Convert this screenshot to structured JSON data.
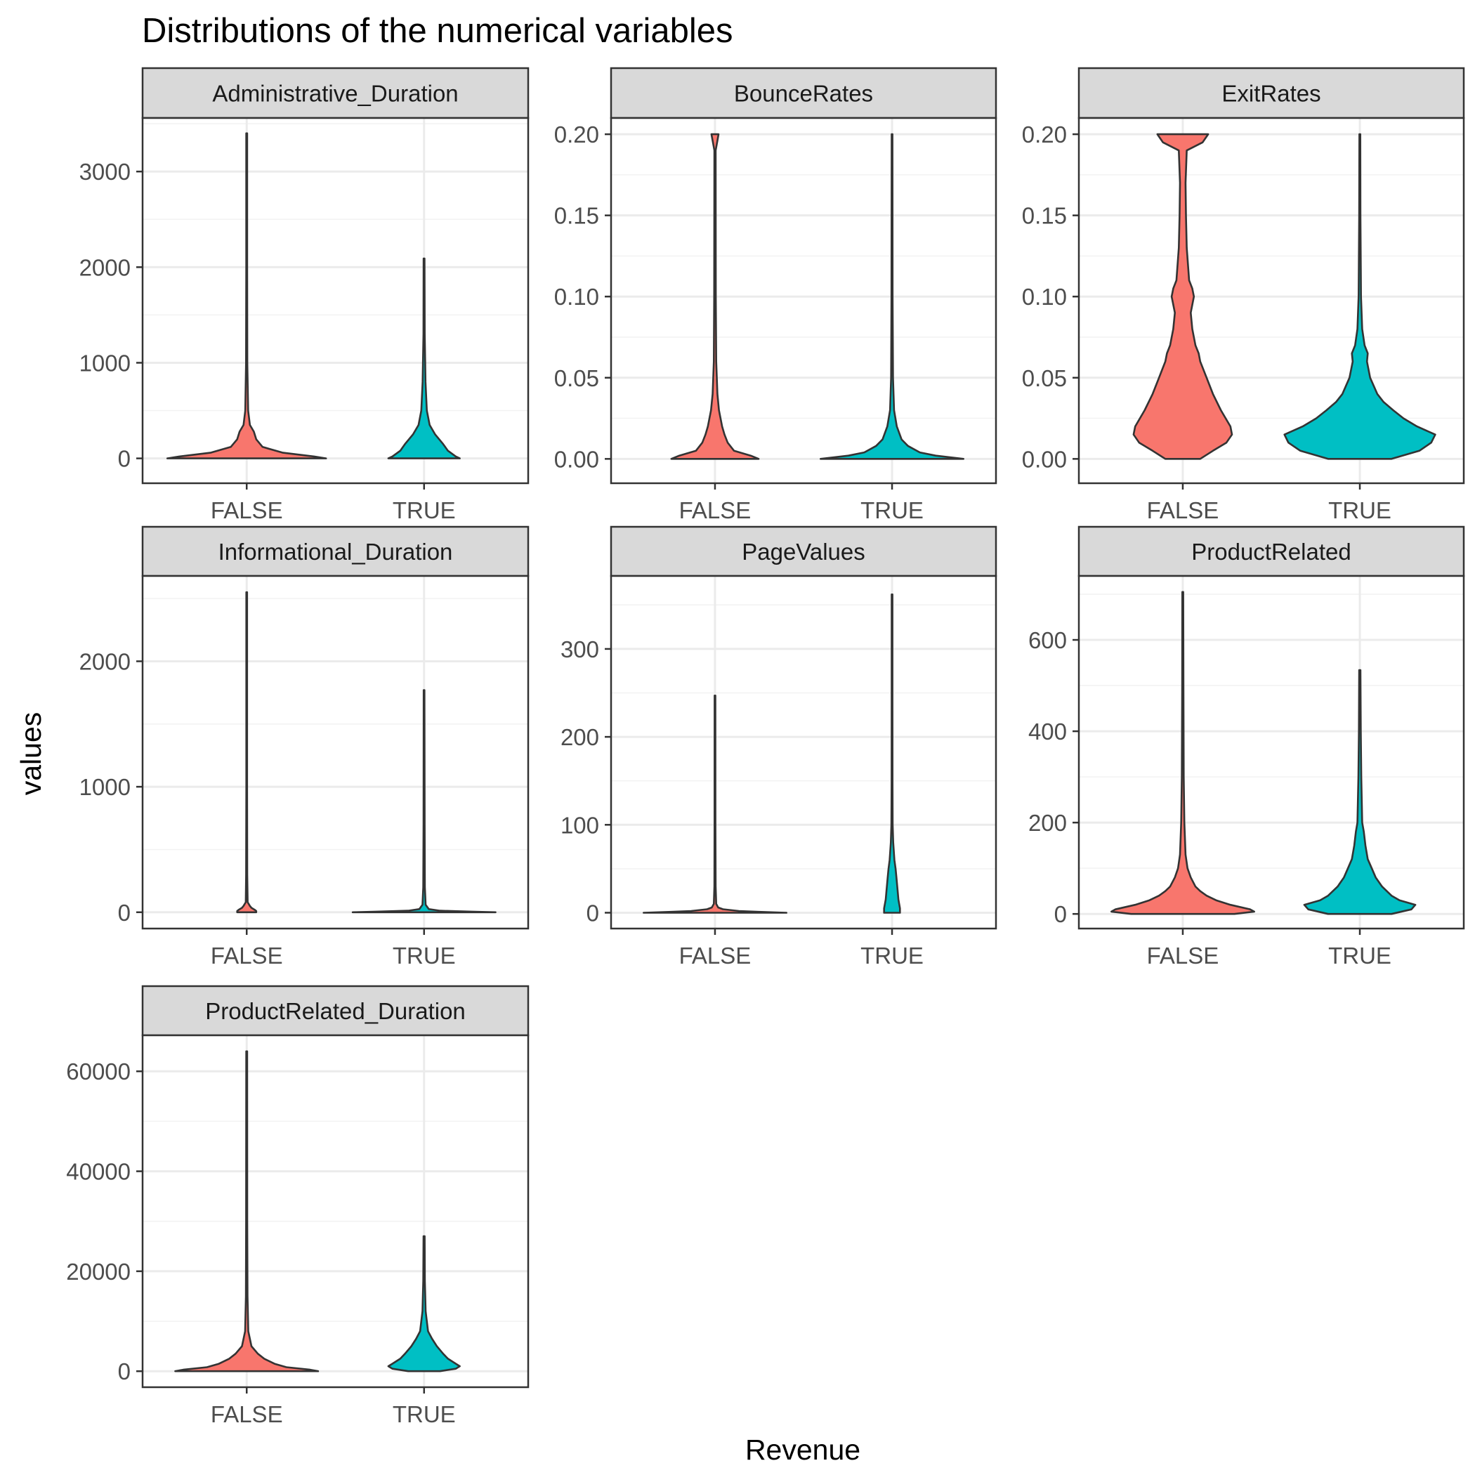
{
  "chart_data": {
    "type": "violin",
    "title": "Distributions of the numerical variables",
    "xlabel": "Revenue",
    "ylabel": "values",
    "categories": [
      "FALSE",
      "TRUE"
    ],
    "colors": {
      "FALSE": "#F8766D",
      "TRUE": "#00BFC4",
      "outline": "#333333",
      "strip_fill": "#D9D9D9",
      "grid": "#EBEBEB"
    },
    "grid": true,
    "legend": "none",
    "panels": [
      {
        "name": "Administrative_Duration",
        "ylim": [
          -260,
          3560
        ],
        "yticks": [
          0,
          1000,
          2000,
          3000
        ],
        "tick_labels": [
          "0",
          "1000",
          "2000",
          "3000"
        ],
        "violins": [
          {
            "group": "FALSE",
            "max": 3400,
            "profile": [
              [
                0,
                1.0
              ],
              [
                20,
                0.85
              ],
              [
                60,
                0.45
              ],
              [
                120,
                0.2
              ],
              [
                200,
                0.12
              ],
              [
                280,
                0.09
              ],
              [
                350,
                0.04
              ],
              [
                500,
                0.018
              ],
              [
                1000,
                0.008
              ],
              [
                2000,
                0.006
              ],
              [
                3400,
                0.006
              ]
            ]
          },
          {
            "group": "TRUE",
            "max": 2090,
            "profile": [
              [
                0,
                0.45
              ],
              [
                20,
                0.4
              ],
              [
                80,
                0.3
              ],
              [
                150,
                0.24
              ],
              [
                250,
                0.14
              ],
              [
                350,
                0.07
              ],
              [
                500,
                0.035
              ],
              [
                800,
                0.018
              ],
              [
                1300,
                0.008
              ],
              [
                2090,
                0.006
              ]
            ]
          }
        ]
      },
      {
        "name": "BounceRates",
        "ylim": [
          -0.015,
          0.21
        ],
        "yticks": [
          0.0,
          0.05,
          0.1,
          0.15,
          0.2
        ],
        "tick_labels": [
          "0.00",
          "0.05",
          "0.10",
          "0.15",
          "0.20"
        ],
        "violins": [
          {
            "group": "FALSE",
            "max": 0.2,
            "profile": [
              [
                0,
                0.55
              ],
              [
                0.002,
                0.45
              ],
              [
                0.005,
                0.24
              ],
              [
                0.01,
                0.16
              ],
              [
                0.015,
                0.12
              ],
              [
                0.02,
                0.09
              ],
              [
                0.03,
                0.05
              ],
              [
                0.04,
                0.03
              ],
              [
                0.06,
                0.015
              ],
              [
                0.1,
                0.01
              ],
              [
                0.19,
                0.008
              ],
              [
                0.196,
                0.03
              ],
              [
                0.2,
                0.045
              ]
            ]
          },
          {
            "group": "TRUE",
            "max": 0.2,
            "profile": [
              [
                0,
                0.9
              ],
              [
                0.002,
                0.55
              ],
              [
                0.004,
                0.35
              ],
              [
                0.008,
                0.2
              ],
              [
                0.012,
                0.12
              ],
              [
                0.02,
                0.06
              ],
              [
                0.03,
                0.025
              ],
              [
                0.05,
                0.012
              ],
              [
                0.1,
                0.007
              ],
              [
                0.2,
                0.005
              ]
            ]
          }
        ]
      },
      {
        "name": "ExitRates",
        "ylim": [
          -0.015,
          0.21
        ],
        "yticks": [
          0.0,
          0.05,
          0.1,
          0.15,
          0.2
        ],
        "tick_labels": [
          "0.00",
          "0.05",
          "0.10",
          "0.15",
          "0.20"
        ],
        "violins": [
          {
            "group": "FALSE",
            "max": 0.2,
            "profile": [
              [
                0,
                0.22
              ],
              [
                0.005,
                0.38
              ],
              [
                0.01,
                0.55
              ],
              [
                0.015,
                0.62
              ],
              [
                0.02,
                0.6
              ],
              [
                0.03,
                0.48
              ],
              [
                0.04,
                0.38
              ],
              [
                0.05,
                0.3
              ],
              [
                0.06,
                0.22
              ],
              [
                0.065,
                0.2
              ],
              [
                0.07,
                0.16
              ],
              [
                0.08,
                0.12
              ],
              [
                0.09,
                0.1
              ],
              [
                0.1,
                0.14
              ],
              [
                0.105,
                0.12
              ],
              [
                0.11,
                0.08
              ],
              [
                0.13,
                0.05
              ],
              [
                0.15,
                0.04
              ],
              [
                0.17,
                0.035
              ],
              [
                0.19,
                0.05
              ],
              [
                0.195,
                0.25
              ],
              [
                0.2,
                0.32
              ]
            ]
          },
          {
            "group": "TRUE",
            "max": 0.2,
            "profile": [
              [
                0,
                0.4
              ],
              [
                0.005,
                0.75
              ],
              [
                0.01,
                0.9
              ],
              [
                0.015,
                0.95
              ],
              [
                0.02,
                0.72
              ],
              [
                0.025,
                0.55
              ],
              [
                0.03,
                0.42
              ],
              [
                0.035,
                0.3
              ],
              [
                0.04,
                0.22
              ],
              [
                0.05,
                0.13
              ],
              [
                0.06,
                0.09
              ],
              [
                0.065,
                0.1
              ],
              [
                0.07,
                0.06
              ],
              [
                0.08,
                0.03
              ],
              [
                0.1,
                0.015
              ],
              [
                0.15,
                0.008
              ],
              [
                0.2,
                0.006
              ]
            ]
          }
        ]
      },
      {
        "name": "Informational_Duration",
        "ylim": [
          -130,
          2680
        ],
        "yticks": [
          0,
          1000,
          2000
        ],
        "tick_labels": [
          "0",
          "1000",
          "2000"
        ],
        "violins": [
          {
            "group": "FALSE",
            "max": 2550,
            "profile": [
              [
                0,
                0.12
              ],
              [
                10,
                0.12
              ],
              [
                20,
                0.1
              ],
              [
                35,
                0.06
              ],
              [
                50,
                0.04
              ],
              [
                80,
                0.012
              ],
              [
                300,
                0.007
              ],
              [
                1000,
                0.005
              ],
              [
                2550,
                0.005
              ]
            ]
          },
          {
            "group": "TRUE",
            "max": 1770,
            "profile": [
              [
                0,
                0.9
              ],
              [
                5,
                0.6
              ],
              [
                12,
                0.2
              ],
              [
                25,
                0.06
              ],
              [
                60,
                0.02
              ],
              [
                200,
                0.01
              ],
              [
                700,
                0.007
              ],
              [
                1770,
                0.005
              ]
            ]
          }
        ]
      },
      {
        "name": "PageValues",
        "ylim": [
          -18,
          383
        ],
        "yticks": [
          0,
          100,
          200,
          300
        ],
        "tick_labels": [
          "0",
          "100",
          "200",
          "300"
        ],
        "violins": [
          {
            "group": "FALSE",
            "max": 247,
            "profile": [
              [
                0,
                0.9
              ],
              [
                1,
                0.55
              ],
              [
                2,
                0.3
              ],
              [
                4,
                0.1
              ],
              [
                6,
                0.04
              ],
              [
                10,
                0.015
              ],
              [
                30,
                0.008
              ],
              [
                100,
                0.006
              ],
              [
                247,
                0.005
              ]
            ]
          },
          {
            "group": "TRUE",
            "max": 362,
            "profile": [
              [
                0,
                0.1
              ],
              [
                5,
                0.1
              ],
              [
                15,
                0.08
              ],
              [
                25,
                0.07
              ],
              [
                40,
                0.055
              ],
              [
                50,
                0.045
              ],
              [
                60,
                0.03
              ],
              [
                80,
                0.015
              ],
              [
                100,
                0.008
              ],
              [
                150,
                0.006
              ],
              [
                250,
                0.005
              ],
              [
                362,
                0.005
              ]
            ]
          }
        ]
      },
      {
        "name": "ProductRelated",
        "ylim": [
          -32,
          740
        ],
        "yticks": [
          0,
          200,
          400,
          600
        ],
        "tick_labels": [
          "0",
          "200",
          "400",
          "600"
        ],
        "violins": [
          {
            "group": "FALSE",
            "max": 705,
            "profile": [
              [
                0,
                0.65
              ],
              [
                5,
                0.9
              ],
              [
                10,
                0.85
              ],
              [
                20,
                0.6
              ],
              [
                30,
                0.42
              ],
              [
                40,
                0.3
              ],
              [
                50,
                0.22
              ],
              [
                60,
                0.16
              ],
              [
                80,
                0.1
              ],
              [
                100,
                0.06
              ],
              [
                130,
                0.035
              ],
              [
                200,
                0.02
              ],
              [
                300,
                0.012
              ],
              [
                500,
                0.008
              ],
              [
                705,
                0.006
              ]
            ]
          },
          {
            "group": "TRUE",
            "max": 534,
            "profile": [
              [
                0,
                0.4
              ],
              [
                10,
                0.65
              ],
              [
                20,
                0.7
              ],
              [
                30,
                0.5
              ],
              [
                40,
                0.4
              ],
              [
                60,
                0.28
              ],
              [
                80,
                0.2
              ],
              [
                100,
                0.15
              ],
              [
                120,
                0.1
              ],
              [
                150,
                0.07
              ],
              [
                180,
                0.05
              ],
              [
                200,
                0.03
              ],
              [
                300,
                0.018
              ],
              [
                400,
                0.012
              ],
              [
                534,
                0.008
              ]
            ]
          }
        ]
      },
      {
        "name": "ProductRelated_Duration",
        "ylim": [
          -3200,
          67200
        ],
        "yticks": [
          0,
          20000,
          40000,
          60000
        ],
        "tick_labels": [
          "0",
          "20000",
          "40000",
          "60000"
        ],
        "violins": [
          {
            "group": "FALSE",
            "max": 64000,
            "profile": [
              [
                0,
                0.9
              ],
              [
                300,
                0.8
              ],
              [
                800,
                0.5
              ],
              [
                1500,
                0.35
              ],
              [
                2500,
                0.22
              ],
              [
                3500,
                0.14
              ],
              [
                5000,
                0.06
              ],
              [
                8000,
                0.02
              ],
              [
                15000,
                0.01
              ],
              [
                30000,
                0.007
              ],
              [
                64000,
                0.006
              ]
            ]
          },
          {
            "group": "TRUE",
            "max": 27000,
            "profile": [
              [
                0,
                0.2
              ],
              [
                500,
                0.4
              ],
              [
                1000,
                0.45
              ],
              [
                1500,
                0.4
              ],
              [
                2500,
                0.3
              ],
              [
                3500,
                0.24
              ],
              [
                5000,
                0.16
              ],
              [
                6500,
                0.1
              ],
              [
                8000,
                0.05
              ],
              [
                12000,
                0.02
              ],
              [
                18000,
                0.01
              ],
              [
                27000,
                0.007
              ]
            ]
          }
        ]
      }
    ]
  }
}
